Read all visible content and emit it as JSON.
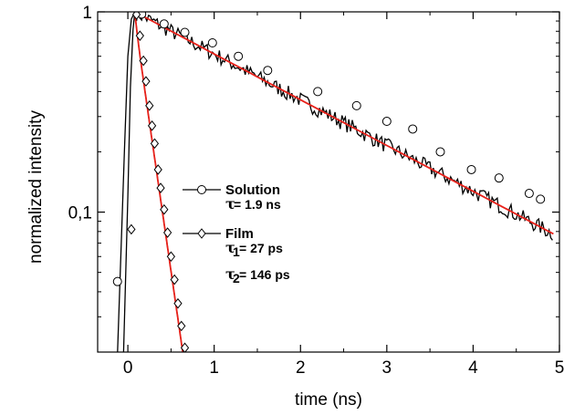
{
  "chart_data": {
    "type": "line",
    "xlabel": "time (ns)",
    "ylabel": "normalized intensity",
    "xlim": [
      -0.35,
      5.0
    ],
    "ylim": [
      0.02,
      1.0
    ],
    "y_scale": "log",
    "x_ticks": [
      0,
      1,
      2,
      3,
      4,
      5
    ],
    "x_tick_labels": [
      "0",
      "1",
      "2",
      "3",
      "4",
      "5"
    ],
    "y_ticks": [
      0.1,
      1
    ],
    "y_tick_labels": [
      "0,1",
      "1"
    ],
    "grid": false,
    "legend_position": "center",
    "legend": [
      {
        "name": "Solution",
        "marker": "circle",
        "params": [
          {
            "symbol": "τ",
            "sub": "",
            "text": "= 1.9 ns"
          }
        ]
      },
      {
        "name": "Film",
        "marker": "diamond",
        "params": [
          {
            "symbol": "τ",
            "sub": "1",
            "text": "= 27  ps"
          },
          {
            "symbol": "τ",
            "sub": "2",
            "text": "= 146 ps"
          }
        ]
      }
    ],
    "colors": {
      "data": "#000000",
      "fit": "#e8211a"
    },
    "series": [
      {
        "name": "Solution",
        "color": "#000000",
        "marker": "circle",
        "noise": true,
        "fit": {
          "t0": 0.08,
          "tau": 1.9
        },
        "rise": [
          [
            -0.12,
            0.02
          ],
          [
            -0.04,
            0.2
          ],
          [
            0.0,
            0.6
          ],
          [
            0.04,
            0.92
          ],
          [
            0.08,
            1.0
          ]
        ],
        "points": [
          [
            -0.12,
            0.045
          ],
          [
            0.16,
            0.975
          ],
          [
            0.42,
            0.87
          ],
          [
            0.66,
            0.79
          ],
          [
            0.98,
            0.7
          ],
          [
            1.28,
            0.6
          ],
          [
            1.62,
            0.51
          ],
          [
            2.2,
            0.4
          ],
          [
            2.65,
            0.34
          ],
          [
            3.0,
            0.284
          ],
          [
            3.3,
            0.26
          ],
          [
            3.62,
            0.2
          ],
          [
            3.98,
            0.163
          ],
          [
            4.3,
            0.148
          ],
          [
            4.65,
            0.124
          ],
          [
            4.78,
            0.116
          ]
        ]
      },
      {
        "name": "Film",
        "color": "#000000",
        "marker": "diamond",
        "fit": {
          "t0": 0.08,
          "tau1": 0.027,
          "tau2": 0.146,
          "a1": 0.1,
          "a2": 0.9
        },
        "rise": [
          [
            -0.05,
            0.02
          ],
          [
            0.0,
            0.12
          ],
          [
            0.03,
            0.42
          ],
          [
            0.06,
            0.82
          ],
          [
            0.08,
            1.0
          ]
        ],
        "points": [
          [
            0.04,
            0.082
          ],
          [
            0.1,
            0.97
          ],
          [
            0.14,
            0.76
          ],
          [
            0.18,
            0.57
          ],
          [
            0.21,
            0.45
          ],
          [
            0.25,
            0.34
          ],
          [
            0.28,
            0.27
          ],
          [
            0.31,
            0.22
          ],
          [
            0.35,
            0.163
          ],
          [
            0.38,
            0.132
          ],
          [
            0.42,
            0.103
          ],
          [
            0.46,
            0.079
          ],
          [
            0.5,
            0.06
          ],
          [
            0.54,
            0.046
          ],
          [
            0.58,
            0.035
          ],
          [
            0.62,
            0.027
          ],
          [
            0.66,
            0.021
          ]
        ]
      }
    ]
  }
}
